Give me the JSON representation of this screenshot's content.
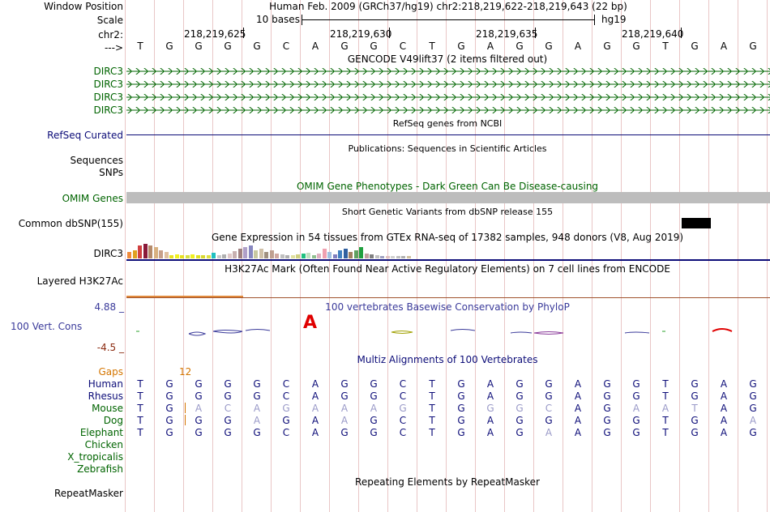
{
  "colors": {
    "gene_green": "#006400",
    "refseq_navy": "#0c0c78",
    "cons_blue": "#3a3a9a",
    "gaps_orange": "#d47500",
    "faint_blue": "#9a9ac8"
  },
  "header": {
    "window_position_label": "Window Position",
    "window_position_value": "Human Feb. 2009 (GRCh37/hg19)   chr2:218,219,622-218,219,643 (22 bp)",
    "scale_label": "Scale",
    "scale_text": "10 bases",
    "assembly": "hg19",
    "chrom_label": "chr2:",
    "coords": [
      "218,219,625",
      "218,219,630",
      "218,219,635",
      "218,219,640"
    ],
    "strand_label": "--->"
  },
  "sequence": [
    "T",
    "G",
    "G",
    "G",
    "G",
    "C",
    "A",
    "G",
    "G",
    "C",
    "T",
    "G",
    "A",
    "G",
    "G",
    "A",
    "G",
    "G",
    "T",
    "G",
    "A",
    "G"
  ],
  "gencode": {
    "title": "GENCODE V49lift37 (2 items filtered out)",
    "genes": [
      "DIRC3",
      "DIRC3",
      "DIRC3",
      "DIRC3"
    ]
  },
  "refseq": {
    "label": "RefSeq Curated",
    "title": "RefSeq genes from NCBI"
  },
  "publications": {
    "title": "Publications: Sequences in Scientific Articles",
    "labels": [
      "Sequences",
      "SNPs"
    ]
  },
  "omim": {
    "title": "OMIM Gene Phenotypes - Dark Green Can Be Disease-causing",
    "label": "OMIM Genes"
  },
  "dbsnp": {
    "title": "Short Genetic Variants from dbSNP release 155",
    "label": "Common dbSNP(155)"
  },
  "gtex": {
    "title": "Gene Expression in 54 tissues from GTEx RNA-seq of 17382 samples, 948 donors (V8, Aug 2019)",
    "gene": "DIRC3"
  },
  "h3k27ac": {
    "title": "H3K27Ac Mark (Often Found Near Active Regulatory Elements) on 7 cell lines from ENCODE",
    "label": "Layered H3K27Ac"
  },
  "phylop": {
    "title": "100 vertebrates Basewise Conservation by PhyloP",
    "label": "100 Vert. Cons",
    "max": "4.88 _",
    "min": "-4.5 _",
    "highlight_base": "A"
  },
  "multiz": {
    "title": "Multiz Alignments of 100 Vertebrates",
    "gaps_label": "Gaps",
    "gap_count": "12",
    "species": [
      {
        "name": "Human",
        "bases": [
          "T",
          "G",
          "G",
          "G",
          "G",
          "C",
          "A",
          "G",
          "G",
          "C",
          "T",
          "G",
          "A",
          "G",
          "G",
          "A",
          "G",
          "G",
          "T",
          "G",
          "A",
          "G"
        ],
        "faint": []
      },
      {
        "name": "Rhesus",
        "bases": [
          "T",
          "G",
          "G",
          "G",
          "G",
          "C",
          "A",
          "G",
          "G",
          "C",
          "T",
          "G",
          "A",
          "G",
          "G",
          "A",
          "G",
          "G",
          "T",
          "G",
          "A",
          "G"
        ],
        "faint": []
      },
      {
        "name": "Mouse",
        "bases": [
          "T",
          "G",
          "A",
          "C",
          "A",
          "G",
          "A",
          "A",
          "A",
          "G",
          "T",
          "G",
          "G",
          "G",
          "C",
          "A",
          "G",
          "A",
          "A",
          "T",
          "A",
          "G"
        ],
        "faint": [
          2,
          3,
          4,
          5,
          6,
          7,
          8,
          9,
          12,
          13,
          14,
          17,
          18,
          19
        ]
      },
      {
        "name": "Dog",
        "bases": [
          "T",
          "G",
          "G",
          "G",
          "A",
          "G",
          "A",
          "A",
          "G",
          "C",
          "T",
          "G",
          "A",
          "G",
          "G",
          "A",
          "G",
          "G",
          "T",
          "G",
          "A",
          "A"
        ],
        "faint": [
          4,
          7,
          21
        ]
      },
      {
        "name": "Elephant",
        "bases": [
          "T",
          "G",
          "G",
          "G",
          "G",
          "C",
          "A",
          "G",
          "G",
          "C",
          "T",
          "G",
          "A",
          "G",
          "A",
          "A",
          "G",
          "G",
          "T",
          "G",
          "A",
          "G"
        ],
        "faint": [
          14
        ]
      },
      {
        "name": "Chicken",
        "bases": [],
        "faint": []
      },
      {
        "name": "X_tropicalis",
        "bases": [],
        "faint": []
      },
      {
        "name": "Zebrafish",
        "bases": [],
        "faint": []
      }
    ]
  },
  "repeatmasker": {
    "title": "Repeating Elements by RepeatMasker",
    "label": "RepeatMasker"
  }
}
